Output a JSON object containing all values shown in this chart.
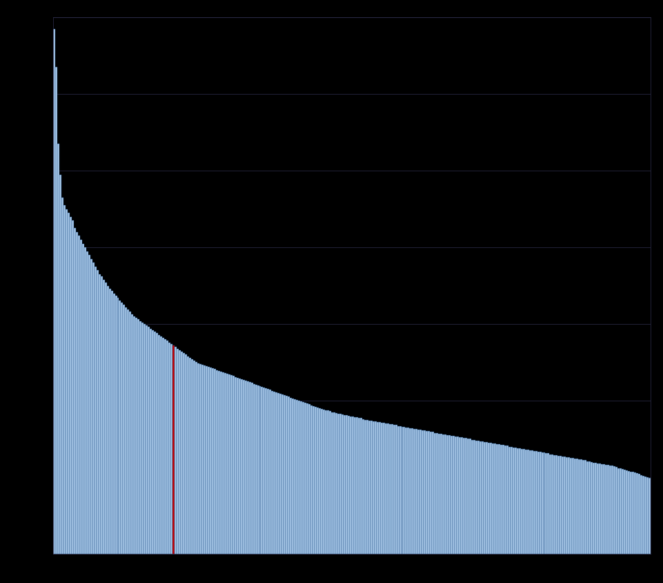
{
  "bar_color": "#a8c8e8",
  "bar_edge_color": "#1a4a80",
  "background_color": "#000000",
  "axes_background": "#000000",
  "grid_color": "#303050",
  "ylim": [
    0,
    0.7
  ],
  "ytick_positions": [
    0.0,
    0.1,
    0.2,
    0.3,
    0.4,
    0.5,
    0.6,
    0.7
  ],
  "n_bars": 290,
  "red_bar_index": 58,
  "values": [
    0.685,
    0.635,
    0.535,
    0.495,
    0.465,
    0.455,
    0.45,
    0.445,
    0.44,
    0.435,
    0.425,
    0.42,
    0.415,
    0.41,
    0.405,
    0.4,
    0.395,
    0.39,
    0.385,
    0.38,
    0.375,
    0.37,
    0.365,
    0.362,
    0.358,
    0.354,
    0.35,
    0.346,
    0.343,
    0.34,
    0.337,
    0.334,
    0.331,
    0.328,
    0.325,
    0.322,
    0.319,
    0.316,
    0.313,
    0.31,
    0.308,
    0.306,
    0.304,
    0.302,
    0.3,
    0.298,
    0.296,
    0.294,
    0.292,
    0.29,
    0.288,
    0.286,
    0.284,
    0.282,
    0.28,
    0.278,
    0.276,
    0.274,
    0.272,
    0.27,
    0.268,
    0.266,
    0.264,
    0.262,
    0.26,
    0.258,
    0.256,
    0.254,
    0.252,
    0.25,
    0.249,
    0.248,
    0.247,
    0.246,
    0.245,
    0.244,
    0.243,
    0.242,
    0.241,
    0.24,
    0.239,
    0.238,
    0.237,
    0.236,
    0.235,
    0.234,
    0.233,
    0.232,
    0.231,
    0.23,
    0.229,
    0.228,
    0.227,
    0.226,
    0.225,
    0.224,
    0.223,
    0.222,
    0.221,
    0.22,
    0.219,
    0.218,
    0.217,
    0.216,
    0.215,
    0.214,
    0.213,
    0.212,
    0.211,
    0.21,
    0.209,
    0.208,
    0.207,
    0.206,
    0.205,
    0.204,
    0.203,
    0.202,
    0.201,
    0.2,
    0.199,
    0.198,
    0.197,
    0.196,
    0.195,
    0.194,
    0.193,
    0.192,
    0.191,
    0.19,
    0.189,
    0.188,
    0.187,
    0.187,
    0.186,
    0.185,
    0.185,
    0.184,
    0.183,
    0.183,
    0.182,
    0.181,
    0.181,
    0.18,
    0.179,
    0.179,
    0.178,
    0.178,
    0.177,
    0.177,
    0.176,
    0.175,
    0.175,
    0.174,
    0.174,
    0.173,
    0.173,
    0.172,
    0.172,
    0.171,
    0.171,
    0.17,
    0.17,
    0.169,
    0.169,
    0.168,
    0.168,
    0.167,
    0.167,
    0.166,
    0.166,
    0.165,
    0.165,
    0.164,
    0.164,
    0.163,
    0.163,
    0.162,
    0.162,
    0.161,
    0.161,
    0.16,
    0.16,
    0.159,
    0.159,
    0.158,
    0.158,
    0.157,
    0.157,
    0.156,
    0.156,
    0.155,
    0.155,
    0.154,
    0.154,
    0.153,
    0.153,
    0.152,
    0.152,
    0.151,
    0.151,
    0.15,
    0.15,
    0.149,
    0.149,
    0.148,
    0.148,
    0.147,
    0.147,
    0.146,
    0.146,
    0.145,
    0.145,
    0.144,
    0.144,
    0.143,
    0.143,
    0.142,
    0.142,
    0.141,
    0.141,
    0.14,
    0.14,
    0.139,
    0.139,
    0.138,
    0.138,
    0.137,
    0.137,
    0.136,
    0.136,
    0.135,
    0.135,
    0.134,
    0.134,
    0.133,
    0.133,
    0.132,
    0.132,
    0.131,
    0.131,
    0.13,
    0.13,
    0.129,
    0.129,
    0.128,
    0.128,
    0.127,
    0.127,
    0.126,
    0.126,
    0.125,
    0.125,
    0.124,
    0.124,
    0.123,
    0.123,
    0.122,
    0.122,
    0.121,
    0.121,
    0.12,
    0.119,
    0.119,
    0.118,
    0.118,
    0.117,
    0.117,
    0.116,
    0.116,
    0.115,
    0.115,
    0.114,
    0.113,
    0.112,
    0.112,
    0.111,
    0.11,
    0.109,
    0.108,
    0.107,
    0.107,
    0.106,
    0.105,
    0.104,
    0.103,
    0.102,
    0.101,
    0.1,
    0.099
  ],
  "figsize": [
    9.62,
    8.44
  ],
  "dpi": 100
}
